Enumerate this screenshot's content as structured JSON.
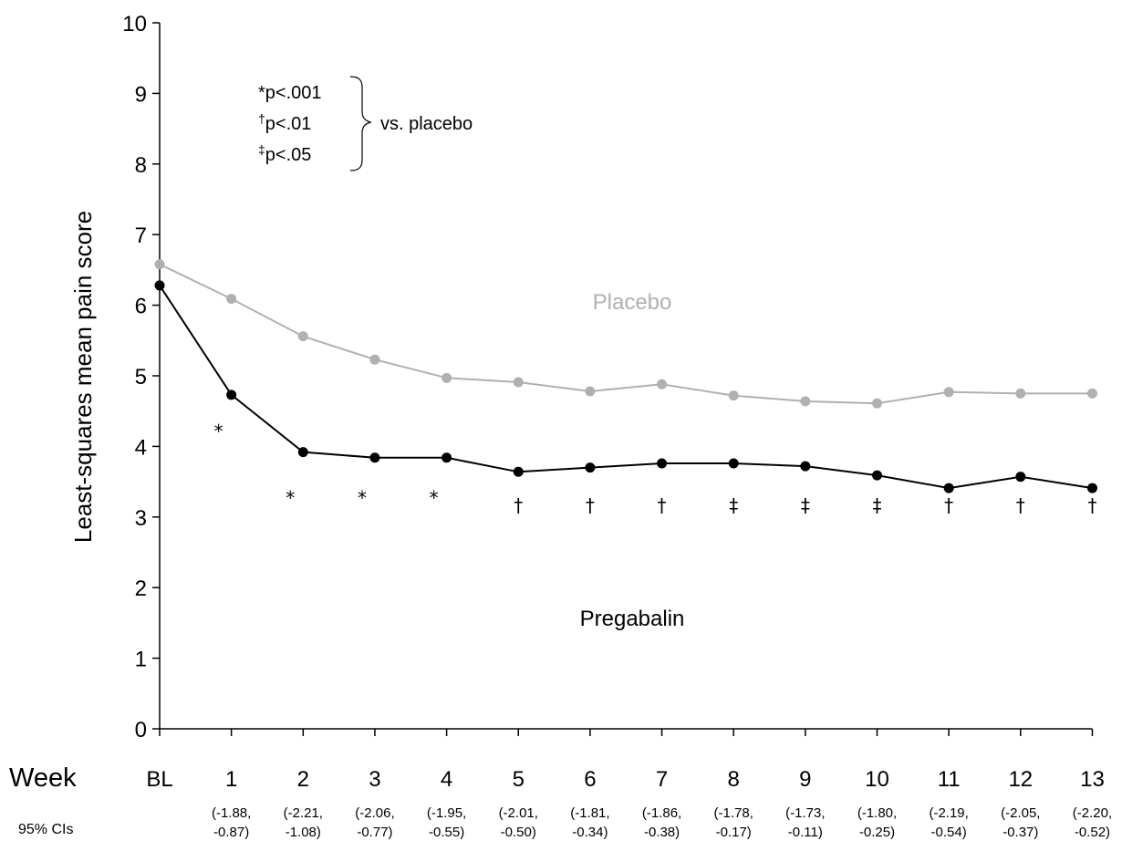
{
  "chart_data": {
    "type": "line",
    "ylabel": "Least-squares mean pain score",
    "xlabel": "Week",
    "ylim": [
      0,
      10
    ],
    "y_ticks": [
      "0",
      "1",
      "2",
      "3",
      "4",
      "5",
      "6",
      "7",
      "8",
      "9",
      "10"
    ],
    "categories": [
      "BL",
      "1",
      "2",
      "3",
      "4",
      "5",
      "6",
      "7",
      "8",
      "9",
      "10",
      "11",
      "12",
      "13"
    ],
    "series": [
      {
        "name": "Placebo",
        "color": "#b0b0b0",
        "values": [
          6.58,
          6.09,
          5.56,
          5.23,
          4.97,
          4.91,
          4.78,
          4.88,
          4.72,
          4.64,
          4.61,
          4.77,
          4.75,
          4.75
        ]
      },
      {
        "name": "Pregabalin",
        "color": "#000000",
        "values": [
          6.28,
          4.73,
          3.92,
          3.84,
          3.84,
          3.64,
          3.7,
          3.76,
          3.76,
          3.72,
          3.59,
          3.41,
          3.57,
          3.41
        ]
      }
    ],
    "significance": [
      "",
      "*",
      "*",
      "*",
      "*",
      "†",
      "†",
      "†",
      "‡",
      "‡",
      "‡",
      "†",
      "†",
      "†"
    ],
    "ci_label": "95% CIs",
    "ci": [
      null,
      [
        "(-1.88,",
        "-0.87)"
      ],
      [
        "(-2.21,",
        "-1.08)"
      ],
      [
        "(-2.06,",
        "-0.77)"
      ],
      [
        "(-1.95,",
        "-0.55)"
      ],
      [
        "(-2.01,",
        "-0.50)"
      ],
      [
        "(-1.81,",
        "-0.34)"
      ],
      [
        "(-1.86,",
        "-0.38)"
      ],
      [
        "(-1.78,",
        "-0.17)"
      ],
      [
        "(-1.73,",
        "-0.11)"
      ],
      [
        "(-1.80,",
        "-0.25)"
      ],
      [
        "(-2.19,",
        "-0.54)"
      ],
      [
        "(-2.05,",
        "-0.37)"
      ],
      [
        "(-2.20,",
        "-0.52)"
      ]
    ],
    "legend": {
      "symbols": [
        "*",
        "†",
        "‡"
      ],
      "thresholds": [
        "p<.001",
        "p<.01",
        "p<.05"
      ],
      "comparison": "vs. placebo"
    },
    "grid": false
  }
}
